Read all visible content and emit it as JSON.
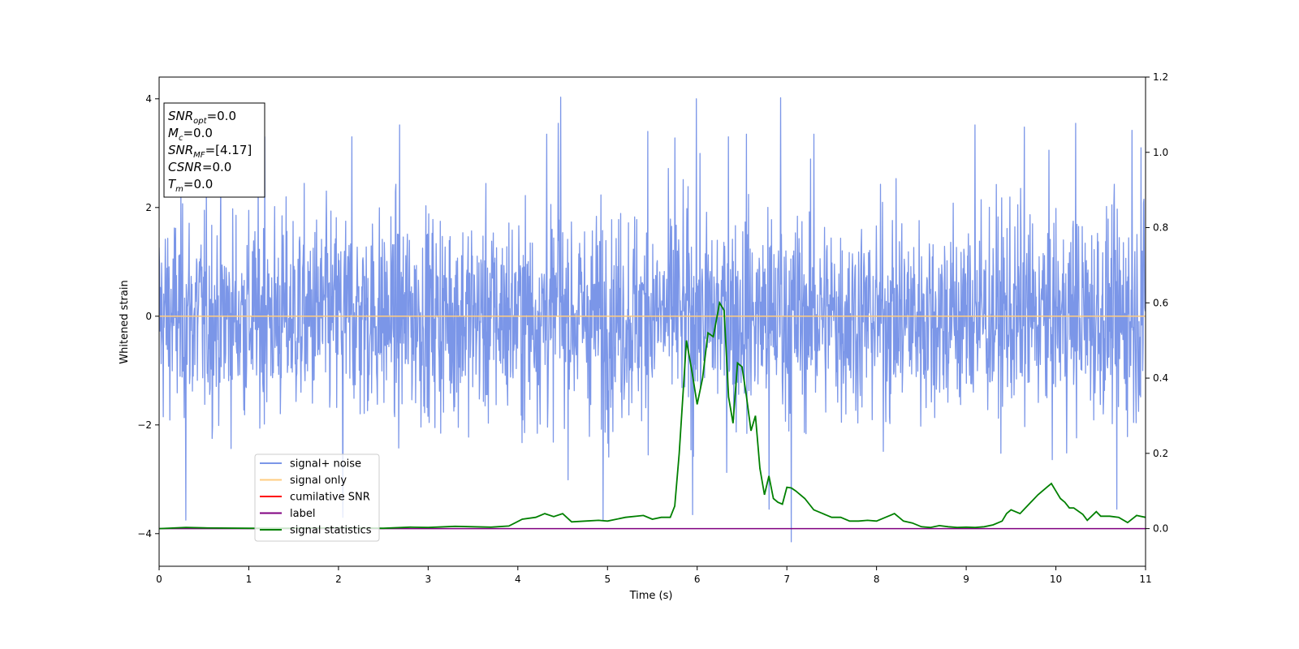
{
  "chart_data": {
    "type": "line",
    "xlabel": "Time (s)",
    "ylabel": "Whitened strain",
    "xlim": [
      0,
      11
    ],
    "ylim": [
      -4.6,
      4.4
    ],
    "y2lim": [
      -0.1,
      1.2
    ],
    "x_ticks": [
      0,
      1,
      2,
      3,
      4,
      5,
      6,
      7,
      8,
      9,
      10,
      11
    ],
    "y_ticks": [
      -4,
      -2,
      0,
      2,
      4
    ],
    "y2_ticks": [
      0.0,
      0.2,
      0.4,
      0.6,
      0.8,
      1.0,
      1.2
    ],
    "y2_tick_labels": [
      "0.0",
      "0.2",
      "0.4",
      "0.6",
      "0.8",
      "1.0",
      "1.2"
    ],
    "grid": false,
    "legend_position": "lower-left",
    "info_box": {
      "lines": [
        {
          "base": "SNR",
          "sub": "opt",
          "value": "=0.0"
        },
        {
          "base": "M",
          "sub": "c",
          "value": "=0.0"
        },
        {
          "base": "SNR",
          "sub": "MF",
          "value": "=[4.17]"
        },
        {
          "base": "CSNR",
          "sub": "",
          "value": "=0.0"
        },
        {
          "base": "T",
          "sub": "m",
          "value": "=0.0"
        }
      ]
    },
    "series": [
      {
        "name": "signal+ noise",
        "axis": "left",
        "color": "#7b96e8",
        "description_values": "noise envelope; extremes",
        "noise_std": 0.95,
        "peaks": [
          {
            "x": 0.3,
            "y": -3.75
          },
          {
            "x": 1.18,
            "y": 3.3
          },
          {
            "x": 2.05,
            "y": -3.7
          },
          {
            "x": 2.15,
            "y": 3.3
          },
          {
            "x": 2.68,
            "y": 3.52
          },
          {
            "x": 4.32,
            "y": 3.35
          },
          {
            "x": 4.45,
            "y": 3.55
          },
          {
            "x": 4.48,
            "y": 4.03
          },
          {
            "x": 4.95,
            "y": -3.75
          },
          {
            "x": 5.45,
            "y": 3.4
          },
          {
            "x": 5.75,
            "y": 3.28
          },
          {
            "x": 5.95,
            "y": -3.65
          },
          {
            "x": 5.99,
            "y": 4.0
          },
          {
            "x": 6.35,
            "y": 3.3
          },
          {
            "x": 6.55,
            "y": 3.35
          },
          {
            "x": 6.8,
            "y": -3.55
          },
          {
            "x": 6.93,
            "y": 4.02
          },
          {
            "x": 7.05,
            "y": -4.15
          },
          {
            "x": 7.3,
            "y": 3.35
          },
          {
            "x": 9.1,
            "y": 3.52
          },
          {
            "x": 9.65,
            "y": 3.48
          },
          {
            "x": 10.22,
            "y": 3.55
          },
          {
            "x": 10.68,
            "y": -3.55
          },
          {
            "x": 10.85,
            "y": 3.42
          },
          {
            "x": 10.95,
            "y": 3.1
          }
        ]
      },
      {
        "name": "signal only",
        "axis": "left",
        "color": "#ffcc80",
        "x": [
          0,
          11
        ],
        "values": [
          0,
          0
        ]
      },
      {
        "name": "cumilative SNR",
        "axis": "right",
        "color": "#ff0000",
        "x": [],
        "values": []
      },
      {
        "name": "label",
        "axis": "right",
        "color": "#800080",
        "x": [
          0,
          11
        ],
        "values": [
          0,
          0
        ]
      },
      {
        "name": "signal statistics",
        "axis": "right",
        "color": "#008000",
        "x": [
          0,
          0.3,
          0.5,
          1.0,
          1.5,
          2.0,
          2.5,
          2.8,
          3.0,
          3.3,
          3.5,
          3.7,
          3.9,
          4.05,
          4.2,
          4.3,
          4.4,
          4.5,
          4.6,
          4.75,
          4.9,
          5.0,
          5.2,
          5.4,
          5.5,
          5.6,
          5.7,
          5.75,
          5.8,
          5.88,
          5.94,
          6.0,
          6.06,
          6.12,
          6.18,
          6.25,
          6.3,
          6.35,
          6.4,
          6.45,
          6.5,
          6.55,
          6.6,
          6.65,
          6.7,
          6.75,
          6.8,
          6.85,
          6.9,
          6.95,
          7.0,
          7.05,
          7.1,
          7.2,
          7.3,
          7.4,
          7.5,
          7.6,
          7.7,
          7.8,
          7.9,
          8.0,
          8.1,
          8.15,
          8.2,
          8.25,
          8.3,
          8.4,
          8.5,
          8.6,
          8.7,
          8.8,
          8.9,
          9.0,
          9.1,
          9.2,
          9.3,
          9.4,
          9.45,
          9.5,
          9.6,
          9.7,
          9.8,
          9.9,
          9.95,
          10.0,
          10.05,
          10.1,
          10.15,
          10.2,
          10.3,
          10.35,
          10.45,
          10.5,
          10.6,
          10.7,
          10.8,
          10.9,
          11.0
        ],
        "values": [
          0.0,
          0.003,
          0.002,
          0.001,
          0.001,
          0.002,
          0.001,
          0.004,
          0.003,
          0.006,
          0.005,
          0.004,
          0.007,
          0.025,
          0.03,
          0.04,
          0.032,
          0.04,
          0.018,
          0.02,
          0.022,
          0.02,
          0.03,
          0.035,
          0.025,
          0.03,
          0.03,
          0.06,
          0.2,
          0.5,
          0.42,
          0.33,
          0.4,
          0.52,
          0.51,
          0.6,
          0.58,
          0.35,
          0.28,
          0.44,
          0.43,
          0.35,
          0.26,
          0.3,
          0.16,
          0.09,
          0.14,
          0.08,
          0.07,
          0.065,
          0.11,
          0.108,
          0.1,
          0.08,
          0.05,
          0.04,
          0.03,
          0.03,
          0.02,
          0.02,
          0.022,
          0.02,
          0.03,
          0.035,
          0.04,
          0.03,
          0.02,
          0.015,
          0.005,
          0.003,
          0.008,
          0.005,
          0.003,
          0.004,
          0.003,
          0.005,
          0.01,
          0.02,
          0.04,
          0.05,
          0.04,
          0.065,
          0.09,
          0.11,
          0.12,
          0.1,
          0.08,
          0.07,
          0.055,
          0.055,
          0.038,
          0.022,
          0.045,
          0.033,
          0.033,
          0.03,
          0.016,
          0.035,
          0.03
        ]
      }
    ]
  }
}
